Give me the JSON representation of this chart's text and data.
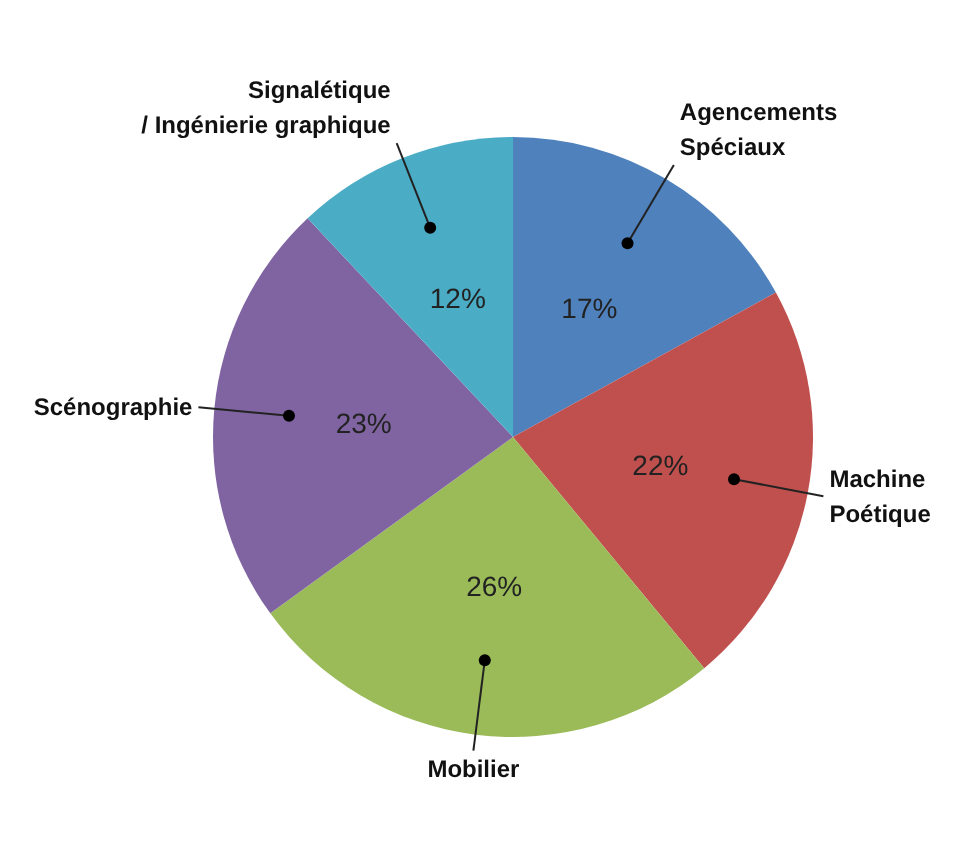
{
  "chart_data": {
    "type": "pie",
    "categories": [
      "Agencements\nSpéciaux",
      "Machine\nPoétique",
      "Mobilier",
      "Scénographie",
      "Signalétique\n/ Ingénierie graphique"
    ],
    "values": [
      17,
      22,
      26,
      23,
      12
    ],
    "colors": [
      "#4f81bd",
      "#c0504d",
      "#9bbb59",
      "#8064a2",
      "#4bacc6"
    ],
    "value_labels": [
      "17%",
      "22%",
      "26%",
      "23%",
      "12%"
    ]
  }
}
